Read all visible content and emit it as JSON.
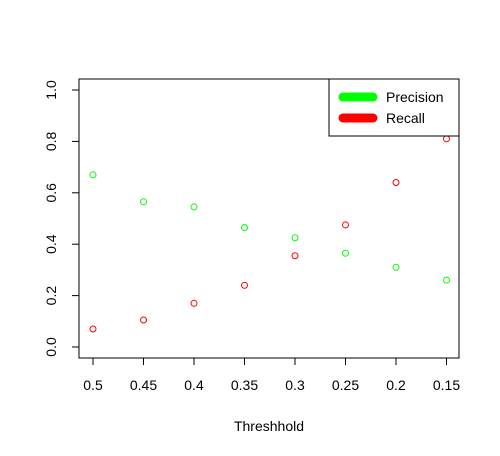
{
  "chart_data": {
    "type": "scatter",
    "title": "",
    "xlabel": "Threshhold",
    "ylabel": "",
    "x": [
      "0.5",
      "0.45",
      "0.4",
      "0.35",
      "0.3",
      "0.25",
      "0.2",
      "0.15"
    ],
    "series": [
      {
        "name": "Precision",
        "color": "#00ff00",
        "values": [
          0.67,
          0.565,
          0.545,
          0.465,
          0.425,
          0.365,
          0.31,
          0.26
        ]
      },
      {
        "name": "Recall",
        "color": "#ff0000",
        "values": [
          0.07,
          0.105,
          0.17,
          0.24,
          0.355,
          0.475,
          0.64,
          0.81
        ]
      }
    ],
    "yticks": [
      "0.0",
      "0.2",
      "0.4",
      "0.6",
      "0.8",
      "1.0"
    ],
    "ylim": [
      0,
      1
    ],
    "grid": false,
    "legend_position": "top-right"
  }
}
